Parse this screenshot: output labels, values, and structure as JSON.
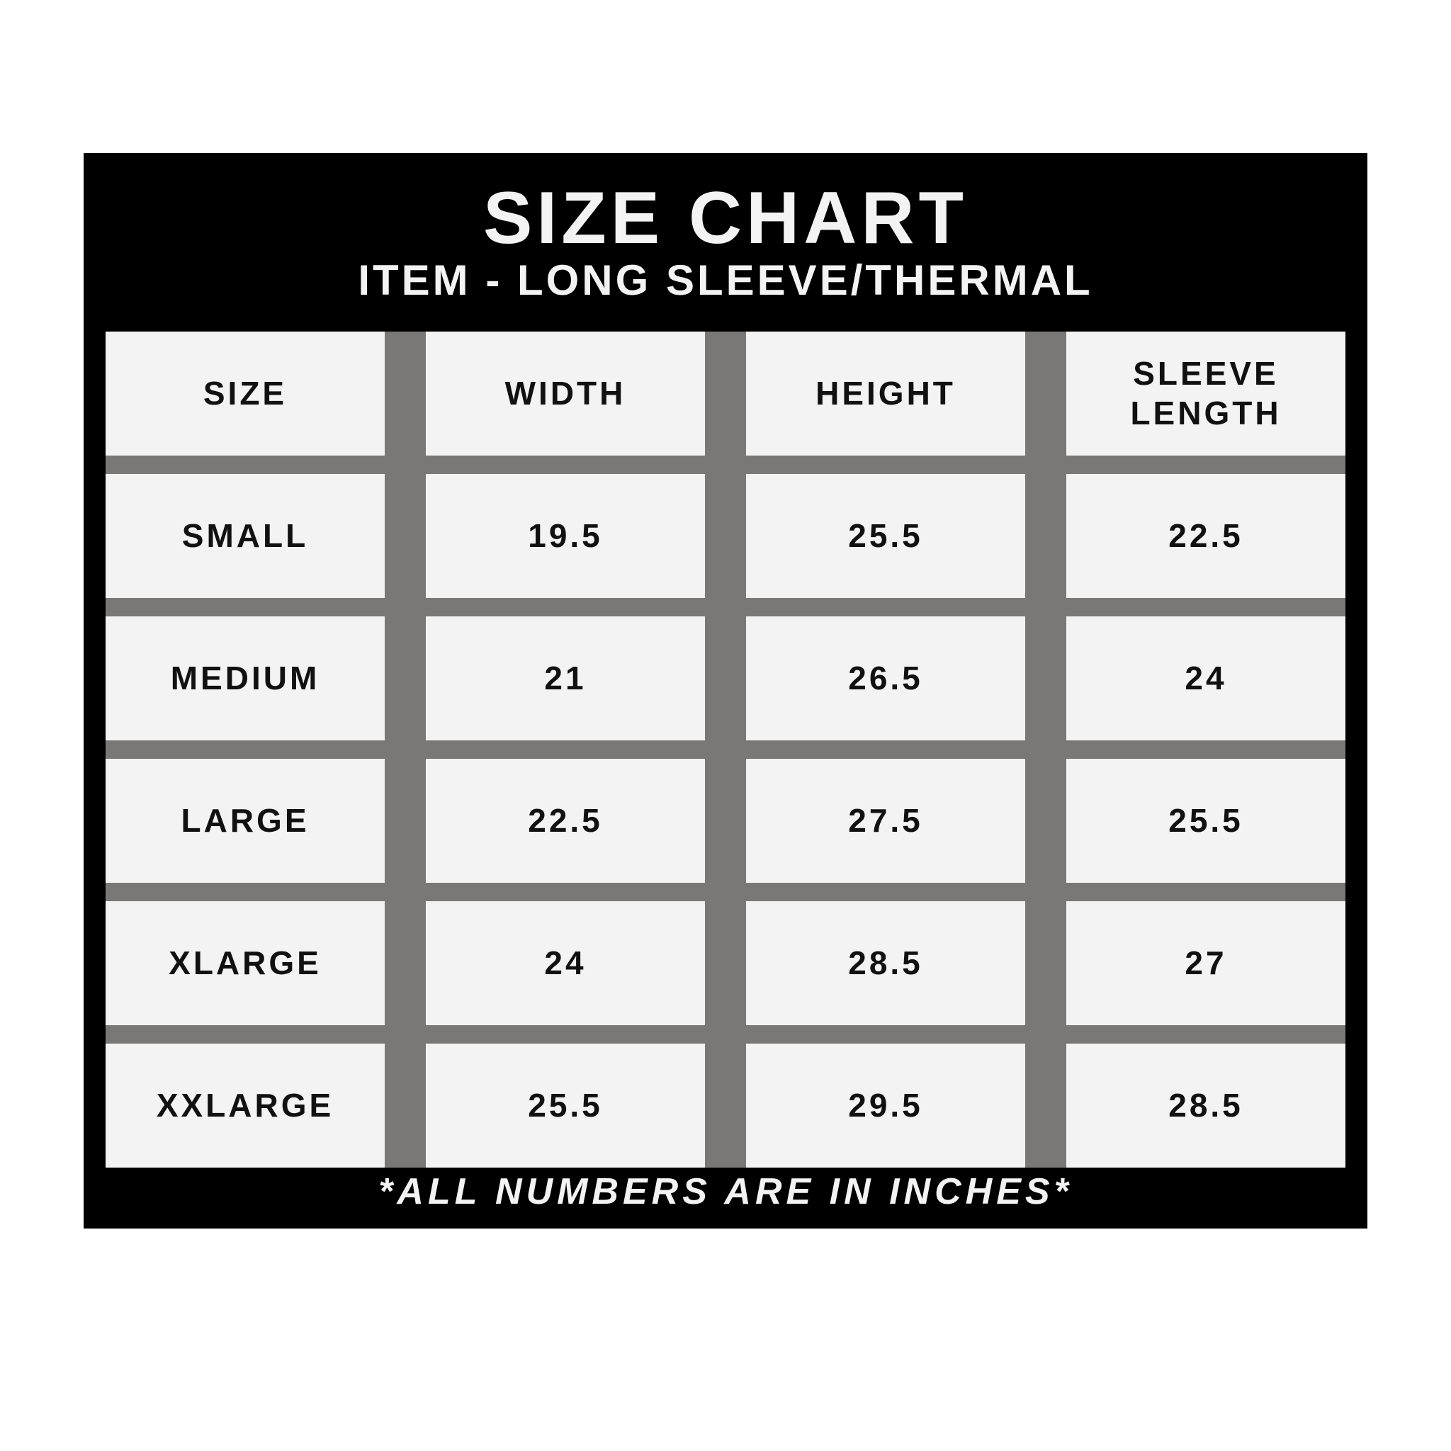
{
  "header": {
    "title": "SIZE CHART",
    "subtitle": "ITEM - LONG SLEEVE/THERMAL"
  },
  "table": {
    "columns": [
      "SIZE",
      "WIDTH",
      "HEIGHT",
      "SLEEVE LENGTH"
    ],
    "rows": [
      [
        "SMALL",
        "19.5",
        "25.5",
        "22.5"
      ],
      [
        "MEDIUM",
        "21",
        "26.5",
        "24"
      ],
      [
        "LARGE",
        "22.5",
        "27.5",
        "25.5"
      ],
      [
        "XLARGE",
        "24",
        "28.5",
        "27"
      ],
      [
        "XXLARGE",
        "25.5",
        "29.5",
        "28.5"
      ]
    ]
  },
  "footer": {
    "note": "*ALL NUMBERS ARE IN INCHES*"
  }
}
